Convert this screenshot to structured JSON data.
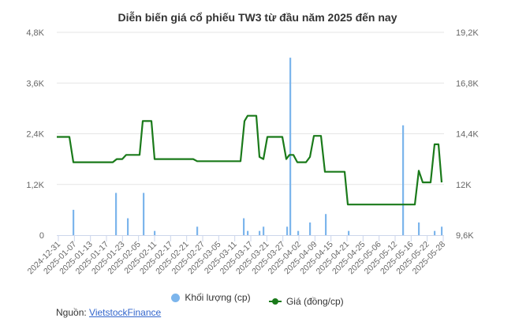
{
  "title": "Diễn biến giá cổ phiếu TW3 từ đầu năm 2025 đến nay",
  "legend": {
    "volume_label": "Khối lượng (cp)",
    "price_label": "Giá (đồng/cp)"
  },
  "source": {
    "prefix": "Nguồn: ",
    "link_text": "VietstockFinance"
  },
  "colors": {
    "volume": "#7cb5ec",
    "price": "#1a7a1a",
    "grid": "#e6e6e6",
    "axis_text": "#666666"
  },
  "chart_data": {
    "type": "bar+line",
    "title": "Diễn biến giá cổ phiếu TW3 từ đầu năm 2025 đến nay",
    "xlabel": "",
    "left_axis": {
      "label": "Khối lượng (cp)",
      "ticks": [
        "0",
        "1,2K",
        "2,4K",
        "3,6K",
        "4,8K"
      ],
      "range": [
        0,
        4800
      ]
    },
    "right_axis": {
      "label": "Giá (đồng/cp)",
      "ticks": [
        "9,6K",
        "12K",
        "14,4K",
        "16,8K",
        "19,2K"
      ],
      "range": [
        9600,
        19200
      ]
    },
    "x_tick_labels": [
      "2024-12-31",
      "2025-01-07",
      "2025-01-13",
      "2025-01-17",
      "2025-01-23",
      "2025-02-05",
      "2025-02-11",
      "2025-02-17",
      "2025-02-21",
      "2025-02-27",
      "2025-03-05",
      "2025-03-11",
      "2025-03-17",
      "2025-03-21",
      "2025-03-27",
      "2025-04-02",
      "2025-04-09",
      "2025-04-15",
      "2025-04-21",
      "2025-04-25",
      "2025-05-06",
      "2025-05-12",
      "2025-05-16",
      "2025-05-22",
      "2025-05-28"
    ],
    "grid": true,
    "legend_position": "bottom",
    "series": [
      {
        "name": "Khối lượng (cp)",
        "type": "bar",
        "axis": "left",
        "points": [
          {
            "x": 93,
            "value": 600
          },
          {
            "x": 147,
            "value": 1000
          },
          {
            "x": 162,
            "value": 400
          },
          {
            "x": 182,
            "value": 1000
          },
          {
            "x": 196,
            "value": 100
          },
          {
            "x": 250,
            "value": 200
          },
          {
            "x": 309,
            "value": 400
          },
          {
            "x": 314,
            "value": 100
          },
          {
            "x": 329,
            "value": 100
          },
          {
            "x": 334,
            "value": 200
          },
          {
            "x": 364,
            "value": 200
          },
          {
            "x": 368,
            "value": 4200
          },
          {
            "x": 378,
            "value": 100
          },
          {
            "x": 393,
            "value": 300
          },
          {
            "x": 413,
            "value": 500
          },
          {
            "x": 442,
            "value": 100
          },
          {
            "x": 511,
            "value": 2600
          },
          {
            "x": 531,
            "value": 300
          },
          {
            "x": 551,
            "value": 100
          },
          {
            "x": 560,
            "value": 200
          }
        ]
      },
      {
        "name": "Giá (đồng/cp)",
        "type": "line",
        "axis": "right",
        "points": [
          {
            "x": 72,
            "value": 14250
          },
          {
            "x": 88,
            "value": 14250
          },
          {
            "x": 93,
            "value": 13050
          },
          {
            "x": 143,
            "value": 13050
          },
          {
            "x": 148,
            "value": 13200
          },
          {
            "x": 155,
            "value": 13200
          },
          {
            "x": 160,
            "value": 13400
          },
          {
            "x": 177,
            "value": 13400
          },
          {
            "x": 181,
            "value": 15000
          },
          {
            "x": 192,
            "value": 15000
          },
          {
            "x": 196,
            "value": 13200
          },
          {
            "x": 245,
            "value": 13200
          },
          {
            "x": 250,
            "value": 13100
          },
          {
            "x": 305,
            "value": 13100
          },
          {
            "x": 310,
            "value": 15000
          },
          {
            "x": 314,
            "value": 15250
          },
          {
            "x": 325,
            "value": 15250
          },
          {
            "x": 329,
            "value": 13300
          },
          {
            "x": 334,
            "value": 13200
          },
          {
            "x": 339,
            "value": 14250
          },
          {
            "x": 358,
            "value": 14250
          },
          {
            "x": 363,
            "value": 13200
          },
          {
            "x": 367,
            "value": 13400
          },
          {
            "x": 372,
            "value": 13400
          },
          {
            "x": 377,
            "value": 13050
          },
          {
            "x": 388,
            "value": 13050
          },
          {
            "x": 393,
            "value": 13300
          },
          {
            "x": 398,
            "value": 14300
          },
          {
            "x": 407,
            "value": 14300
          },
          {
            "x": 412,
            "value": 12600
          },
          {
            "x": 437,
            "value": 12600
          },
          {
            "x": 441,
            "value": 11050
          },
          {
            "x": 526,
            "value": 11050
          },
          {
            "x": 531,
            "value": 12650
          },
          {
            "x": 536,
            "value": 12100
          },
          {
            "x": 546,
            "value": 12100
          },
          {
            "x": 551,
            "value": 13900
          },
          {
            "x": 556,
            "value": 13900
          },
          {
            "x": 560,
            "value": 12100
          }
        ]
      }
    ]
  }
}
